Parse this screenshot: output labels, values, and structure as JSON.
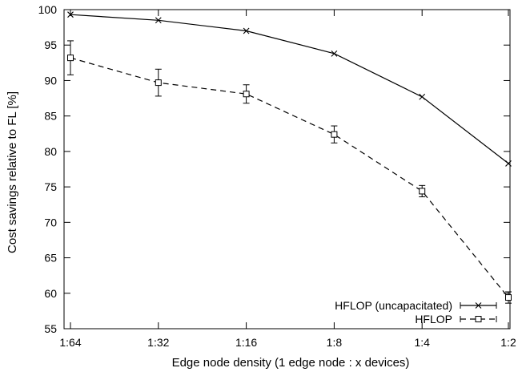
{
  "chart_data": {
    "type": "line",
    "title": "",
    "xlabel": "Edge node density (1 edge node : x devices)",
    "ylabel": "Cost savings relative to FL [%]",
    "categories": [
      "1:64",
      "1:32",
      "1:16",
      "1:8",
      "1:4",
      "1:2"
    ],
    "ylim": [
      55,
      100
    ],
    "yticks": [
      55,
      60,
      65,
      70,
      75,
      80,
      85,
      90,
      95,
      100
    ],
    "grid": false,
    "legend_position": "bottom-right",
    "series": [
      {
        "name": "HFLOP (uncapacitated)",
        "marker": "x",
        "line_style": "solid",
        "color": "#000000",
        "values": [
          99.3,
          98.5,
          97.0,
          93.8,
          87.7,
          78.3
        ],
        "error": [
          0,
          0,
          0,
          0,
          0,
          0
        ]
      },
      {
        "name": "HFLOP",
        "marker": "square",
        "line_style": "dashed",
        "color": "#000000",
        "values": [
          93.2,
          89.7,
          88.1,
          82.4,
          74.4,
          59.4
        ],
        "error": [
          2.4,
          1.9,
          1.3,
          1.2,
          0.8,
          0.8
        ]
      }
    ]
  }
}
